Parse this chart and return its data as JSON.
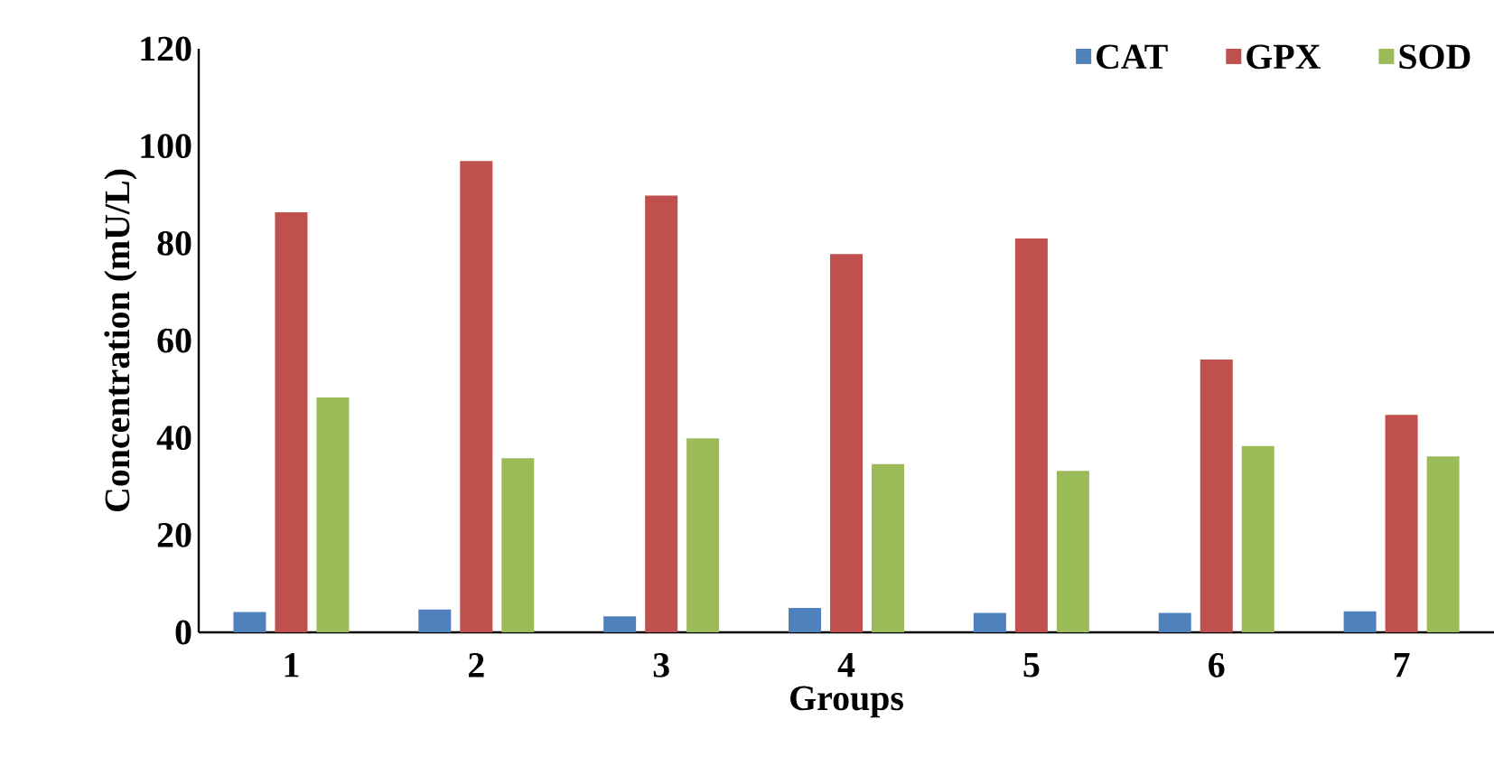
{
  "chart_data": {
    "type": "bar",
    "xlabel": "Groups",
    "ylabel": "Concentration (mU/L)",
    "categories": [
      "1",
      "2",
      "3",
      "4",
      "5",
      "6",
      "7"
    ],
    "series": [
      {
        "name": "CAT",
        "color": "#4f81bd",
        "values": [
          4.2,
          4.7,
          3.3,
          5.0,
          4.0,
          4.0,
          4.3
        ]
      },
      {
        "name": "GPX",
        "color": "#c0504d",
        "values": [
          86.4,
          96.9,
          89.8,
          77.8,
          81.0,
          56.1,
          44.7
        ]
      },
      {
        "name": "SOD",
        "color": "#9bbb59",
        "values": [
          48.3,
          35.8,
          39.9,
          34.6,
          33.2,
          38.3,
          36.2
        ]
      }
    ],
    "ylim": [
      0,
      120
    ],
    "yticks": [
      0,
      20,
      40,
      60,
      80,
      100,
      120
    ],
    "legend": "top right",
    "grid": false
  }
}
